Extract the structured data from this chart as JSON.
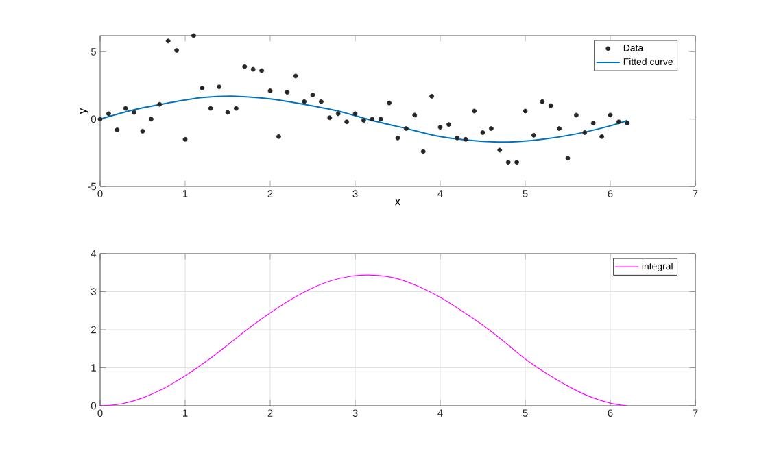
{
  "chart_data": [
    {
      "type": "scatter",
      "xlabel": "x",
      "ylabel": "y",
      "xlim": [
        0,
        7
      ],
      "ylim": [
        -5,
        6.2
      ],
      "xticks": [
        0,
        1,
        2,
        3,
        4,
        5,
        6,
        7
      ],
      "yticks": [
        -5,
        0,
        5
      ],
      "grid": false,
      "legend": "top right",
      "series": [
        {
          "name": "Data",
          "type": "scatter",
          "color": "#262626",
          "marker": "circle",
          "x": [
            0,
            0.1,
            0.2,
            0.3,
            0.4,
            0.5,
            0.6,
            0.7,
            0.8,
            0.9,
            1.0,
            1.1,
            1.2,
            1.3,
            1.4,
            1.5,
            1.6,
            1.7,
            1.8,
            1.9,
            2.0,
            2.1,
            2.2,
            2.3,
            2.4,
            2.5,
            2.6,
            2.7,
            2.8,
            2.9,
            3.0,
            3.1,
            3.2,
            3.3,
            3.4,
            3.5,
            3.6,
            3.7,
            3.8,
            3.9,
            4.0,
            4.1,
            4.2,
            4.3,
            4.4,
            4.5,
            4.6,
            4.7,
            4.8,
            4.9,
            5.0,
            5.1,
            5.2,
            5.3,
            5.4,
            5.5,
            5.6,
            5.7,
            5.8,
            5.9,
            6.0,
            6.1,
            6.2
          ],
          "values": [
            0,
            0.4,
            -0.8,
            0.8,
            0.5,
            -0.9,
            0,
            1.1,
            5.8,
            5.1,
            -1.5,
            6.2,
            2.3,
            0.8,
            2.4,
            0.5,
            0.8,
            3.9,
            3.7,
            3.6,
            2.1,
            -1.3,
            2,
            3.2,
            1.3,
            1.8,
            1.3,
            0.1,
            0.4,
            -0.2,
            0.4,
            -0.1,
            0,
            0,
            1.2,
            -1.4,
            -0.7,
            0.3,
            -2.4,
            1.7,
            -0.6,
            -0.4,
            -1.4,
            -1.5,
            0.6,
            -1,
            -0.7,
            -2.3,
            -3.2,
            -3.2,
            0.6,
            -1.2,
            1.3,
            1,
            -0.7,
            -2.9,
            0.3,
            -1,
            -0.3,
            -1.3,
            0.3,
            -0.2,
            -0.3
          ]
        },
        {
          "name": "Fitted curve",
          "type": "line",
          "color": "#0072bd",
          "marker": "none",
          "line_style": "solid",
          "x": [
            0,
            0.4,
            0.8,
            1.2,
            1.6,
            2.0,
            2.4,
            2.8,
            3.2,
            3.6,
            4.0,
            4.4,
            4.8,
            5.2,
            5.6,
            6.0,
            6.2
          ],
          "values": [
            0,
            0.7,
            1.2,
            1.6,
            1.7,
            1.5,
            1.1,
            0.6,
            -0.1,
            -0.7,
            -1.3,
            -1.6,
            -1.7,
            -1.5,
            -1.1,
            -0.5,
            -0.1
          ]
        }
      ]
    },
    {
      "type": "line",
      "xlim": [
        0,
        7
      ],
      "ylim": [
        0,
        4
      ],
      "xticks": [
        0,
        1,
        2,
        3,
        4,
        5,
        6,
        7
      ],
      "yticks": [
        0,
        1,
        2,
        3,
        4
      ],
      "grid": true,
      "legend": "top right",
      "series": [
        {
          "name": "integral",
          "color": "#ff00ff",
          "marker": "none",
          "line_style": "solid",
          "x": [
            0,
            0.25,
            0.5,
            0.75,
            1,
            1.25,
            1.5,
            1.75,
            2,
            2.25,
            2.5,
            2.75,
            3,
            3.25,
            3.5,
            3.75,
            4,
            4.25,
            4.5,
            4.75,
            5,
            5.25,
            5.5,
            5.75,
            6,
            6.2
          ],
          "values": [
            0,
            0.05,
            0.21,
            0.46,
            0.79,
            1.17,
            1.6,
            2.04,
            2.44,
            2.8,
            3.1,
            3.31,
            3.42,
            3.43,
            3.34,
            3.13,
            2.85,
            2.5,
            2.12,
            1.69,
            1.23,
            0.85,
            0.52,
            0.25,
            0.07,
            0
          ]
        }
      ]
    }
  ]
}
